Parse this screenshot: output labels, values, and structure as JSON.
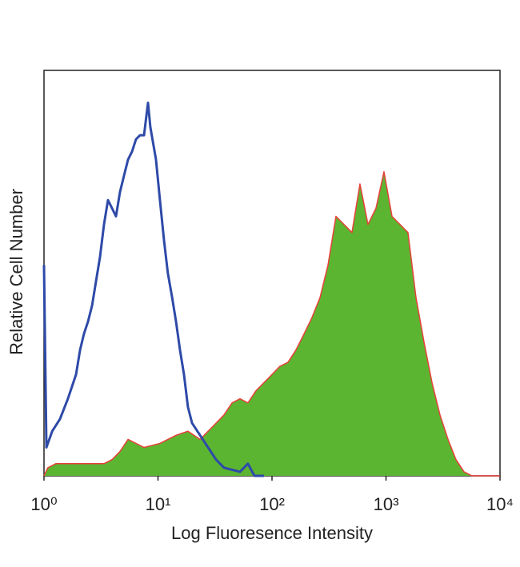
{
  "chart_data": {
    "type": "line",
    "x_label": "Log Fluoresence Intensity",
    "y_label": "Relative Cell Number",
    "xscale": "log",
    "xlim": [
      1,
      10000
    ],
    "ylim": [
      0,
      100
    ],
    "xticks": [
      {
        "value": 1,
        "label": "10⁰"
      },
      {
        "value": 10,
        "label": "10¹"
      },
      {
        "value": 100,
        "label": "10²"
      },
      {
        "value": 1000,
        "label": "10³"
      },
      {
        "value": 10000,
        "label": "10⁴"
      }
    ],
    "series": [
      {
        "color": "#e8403a",
        "fill": "#5cb531",
        "x": [
          1,
          1.08,
          1.27,
          1.76,
          2.43,
          3.36,
          3.95,
          4.64,
          5.46,
          7.54,
          10.4,
          14.4,
          18.3,
          23.4,
          27.5,
          32.3,
          37.9,
          44.6,
          52.4,
          61.5,
          72.4,
          85.1,
          100,
          117,
          138,
          162,
          191,
          224,
          264,
          310,
          364,
          428,
          503,
          591,
          695,
          817,
          960,
          1129,
          1327,
          1559,
          1832,
          2154,
          2533,
          2977,
          3499,
          4111,
          4831,
          5675,
          10000
        ],
        "values": [
          0,
          2,
          3,
          3,
          3,
          3,
          4,
          6,
          9,
          7,
          8,
          10,
          11,
          9,
          11,
          13,
          15,
          18,
          19,
          18,
          21,
          23,
          25,
          27,
          28,
          31,
          35,
          39,
          44,
          52,
          64,
          62,
          60,
          72,
          62,
          66,
          75,
          64,
          62,
          60,
          44,
          33,
          23,
          15,
          9,
          4,
          1,
          0,
          0
        ]
      },
      {
        "color": "#2e4aa8",
        "x": [
          1,
          1.05,
          1.18,
          1.38,
          1.62,
          1.91,
          2.07,
          2.24,
          2.43,
          2.64,
          2.86,
          3.1,
          3.36,
          3.64,
          3.95,
          4.28,
          4.64,
          5.03,
          5.46,
          5.92,
          6.41,
          6.95,
          7.54,
          8.17,
          8.57,
          9.6,
          10.4,
          11.3,
          12.2,
          13.3,
          14.4,
          15.6,
          16.9,
          18.3,
          19.9,
          23.4,
          27.5,
          32.3,
          37.9,
          52.4,
          61.5,
          70.1,
          85.1
        ],
        "values": [
          52,
          7,
          11,
          14,
          19,
          25,
          31,
          35,
          38,
          42,
          48,
          54,
          62,
          68,
          66,
          64,
          70,
          74,
          78,
          80,
          83,
          84,
          84,
          92,
          86,
          78,
          68,
          58,
          50,
          44,
          38,
          31,
          25,
          17,
          13,
          10,
          7,
          4,
          2,
          1,
          3,
          0,
          0
        ]
      }
    ]
  }
}
